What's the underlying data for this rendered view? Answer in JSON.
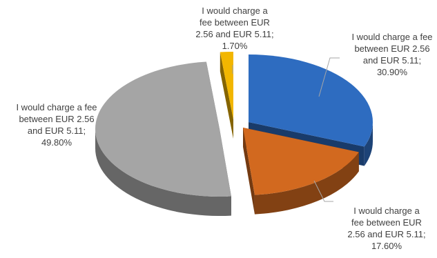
{
  "chart_data": {
    "type": "pie",
    "style": "3d-exploded",
    "title": "",
    "slices": [
      {
        "label": "I would charge a fee between EUR 2.56 and EUR 5.11",
        "value": 30.9,
        "value_label": "30.90%",
        "color": "#2e6cc0"
      },
      {
        "label": "I would charge a fee between EUR 2.56 and EUR 5.11",
        "value": 17.6,
        "value_label": "17.60%",
        "color": "#d2691f"
      },
      {
        "label": "I would charge a fee between EUR 2.56 and EUR 5.11",
        "value": 49.8,
        "value_label": "49.80%",
        "color": "#a5a5a5"
      },
      {
        "label": "I would charge a fee between EUR 2.56 and EUR 5.11",
        "value": 1.7,
        "value_label": "1.70%",
        "color": "#f2b600"
      }
    ]
  }
}
